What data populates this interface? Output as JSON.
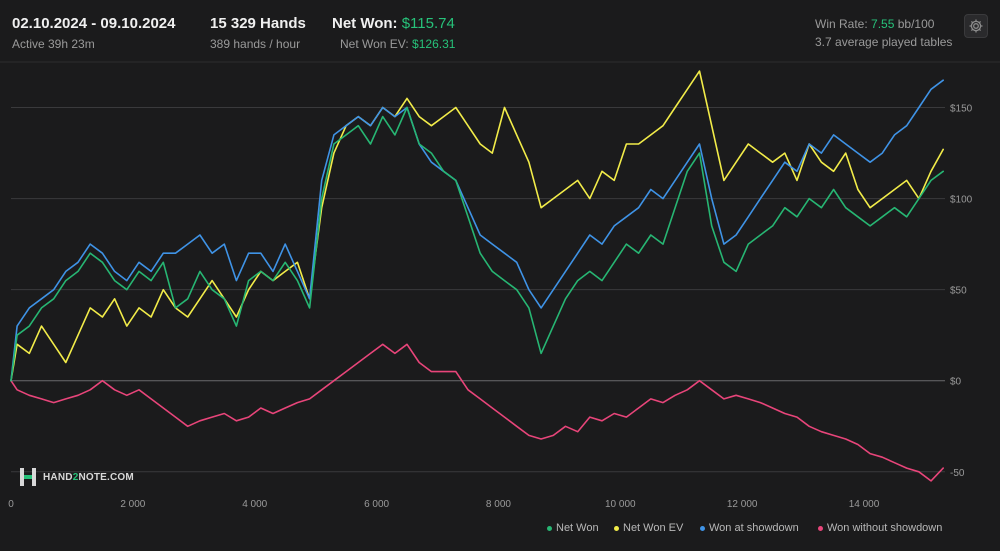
{
  "header": {
    "date_range": "02.10.2024 - 09.10.2024",
    "active_time": "Active 39h 23m",
    "hands": "15 329 Hands",
    "hands_per_hour": "389 hands / hour",
    "net_won_label": "Net Won:",
    "net_won_value": "$115.74",
    "net_won_ev_label": "Net Won  EV:",
    "net_won_ev_value": "$126.31",
    "win_rate_label": "Win Rate:",
    "win_rate_value": "7.55",
    "win_rate_unit": "bb/100",
    "avg_tables": "3.7 average played tables"
  },
  "logo": {
    "text_a": "HAND",
    "text_b": "2",
    "text_c": "NOTE.COM"
  },
  "icons": {
    "settings": "gear-icon"
  },
  "colors": {
    "net_won": "#27b673",
    "net_won_ev": "#f2ec49",
    "showdown": "#3f93e6",
    "non_showdown": "#e8457a"
  },
  "chart_data": {
    "type": "line",
    "title": "",
    "xlabel": "",
    "ylabel": "",
    "xlim": [
      0,
      15329
    ],
    "ylim": [
      -60,
      175
    ],
    "x_ticks": [
      0,
      2000,
      4000,
      6000,
      8000,
      10000,
      12000,
      14000
    ],
    "x_tick_labels": [
      "0",
      "2 000",
      "4 000",
      "6 000",
      "8 000",
      "10 000",
      "12 000",
      "14 000"
    ],
    "y_ticks": [
      -50,
      0,
      50,
      100,
      150
    ],
    "y_tick_labels": [
      "-50",
      "$0",
      "$50",
      "$100",
      "$150"
    ],
    "grid": "horizontal",
    "legend_position": "bottom-right",
    "x": [
      0,
      100,
      300,
      500,
      700,
      900,
      1100,
      1300,
      1500,
      1700,
      1900,
      2100,
      2300,
      2500,
      2700,
      2900,
      3100,
      3300,
      3500,
      3700,
      3900,
      4100,
      4300,
      4500,
      4700,
      4900,
      5100,
      5300,
      5500,
      5700,
      5900,
      6100,
      6300,
      6500,
      6700,
      6900,
      7100,
      7300,
      7500,
      7700,
      7900,
      8100,
      8300,
      8500,
      8700,
      8900,
      9100,
      9300,
      9500,
      9700,
      9900,
      10100,
      10300,
      10500,
      10700,
      10900,
      11100,
      11300,
      11500,
      11700,
      11900,
      12100,
      12300,
      12500,
      12700,
      12900,
      13100,
      13300,
      13500,
      13700,
      13900,
      14100,
      14300,
      14500,
      14700,
      14900,
      15100,
      15300
    ],
    "series": [
      {
        "name": "Net Won",
        "color": "#27b673",
        "values": [
          0,
          25,
          30,
          40,
          45,
          55,
          60,
          70,
          65,
          55,
          50,
          60,
          55,
          65,
          40,
          45,
          60,
          50,
          45,
          30,
          55,
          60,
          55,
          65,
          55,
          40,
          100,
          130,
          135,
          140,
          130,
          145,
          135,
          150,
          130,
          125,
          115,
          110,
          90,
          70,
          60,
          55,
          50,
          40,
          15,
          30,
          45,
          55,
          60,
          55,
          65,
          75,
          70,
          80,
          75,
          95,
          115,
          125,
          85,
          65,
          60,
          75,
          80,
          85,
          95,
          90,
          100,
          95,
          105,
          95,
          90,
          85,
          90,
          95,
          90,
          100,
          110,
          115
        ]
      },
      {
        "name": "Net Won  EV",
        "color": "#f2ec49",
        "values": [
          0,
          20,
          15,
          30,
          20,
          10,
          25,
          40,
          35,
          45,
          30,
          40,
          35,
          50,
          40,
          35,
          45,
          55,
          45,
          35,
          50,
          60,
          55,
          60,
          65,
          45,
          95,
          125,
          140,
          145,
          140,
          150,
          145,
          155,
          145,
          140,
          145,
          150,
          140,
          130,
          125,
          150,
          135,
          120,
          95,
          100,
          105,
          110,
          100,
          115,
          110,
          130,
          130,
          135,
          140,
          150,
          160,
          170,
          140,
          110,
          120,
          130,
          125,
          120,
          125,
          110,
          130,
          120,
          115,
          125,
          105,
          95,
          100,
          105,
          110,
          100,
          115,
          127
        ]
      },
      {
        "name": "Won at showdown",
        "color": "#3f93e6",
        "values": [
          0,
          30,
          40,
          45,
          50,
          60,
          65,
          75,
          70,
          60,
          55,
          65,
          60,
          70,
          70,
          75,
          80,
          70,
          75,
          55,
          70,
          70,
          60,
          75,
          60,
          45,
          110,
          135,
          140,
          145,
          140,
          150,
          145,
          150,
          130,
          120,
          115,
          110,
          95,
          80,
          75,
          70,
          65,
          50,
          40,
          50,
          60,
          70,
          80,
          75,
          85,
          90,
          95,
          105,
          100,
          110,
          120,
          130,
          100,
          75,
          80,
          90,
          100,
          110,
          120,
          115,
          130,
          125,
          135,
          130,
          125,
          120,
          125,
          135,
          140,
          150,
          160,
          165
        ]
      },
      {
        "name": "Won without showdown",
        "color": "#e8457a",
        "values": [
          0,
          -5,
          -8,
          -10,
          -12,
          -10,
          -8,
          -5,
          0,
          -5,
          -8,
          -5,
          -10,
          -15,
          -20,
          -25,
          -22,
          -20,
          -18,
          -22,
          -20,
          -15,
          -18,
          -15,
          -12,
          -10,
          -5,
          0,
          5,
          10,
          15,
          20,
          15,
          20,
          10,
          5,
          5,
          5,
          -5,
          -10,
          -15,
          -20,
          -25,
          -30,
          -32,
          -30,
          -25,
          -28,
          -20,
          -22,
          -18,
          -20,
          -15,
          -10,
          -12,
          -8,
          -5,
          0,
          -5,
          -10,
          -8,
          -10,
          -12,
          -15,
          -18,
          -20,
          -25,
          -28,
          -30,
          -32,
          -35,
          -40,
          -42,
          -45,
          -48,
          -50,
          -55,
          -48
        ]
      }
    ]
  },
  "legend": [
    {
      "label": "Net Won",
      "color": "#27b673"
    },
    {
      "label": "Net Won  EV",
      "color": "#f2ec49"
    },
    {
      "label": "Won at showdown",
      "color": "#3f93e6"
    },
    {
      "label": "Won without showdown",
      "color": "#e8457a"
    }
  ]
}
